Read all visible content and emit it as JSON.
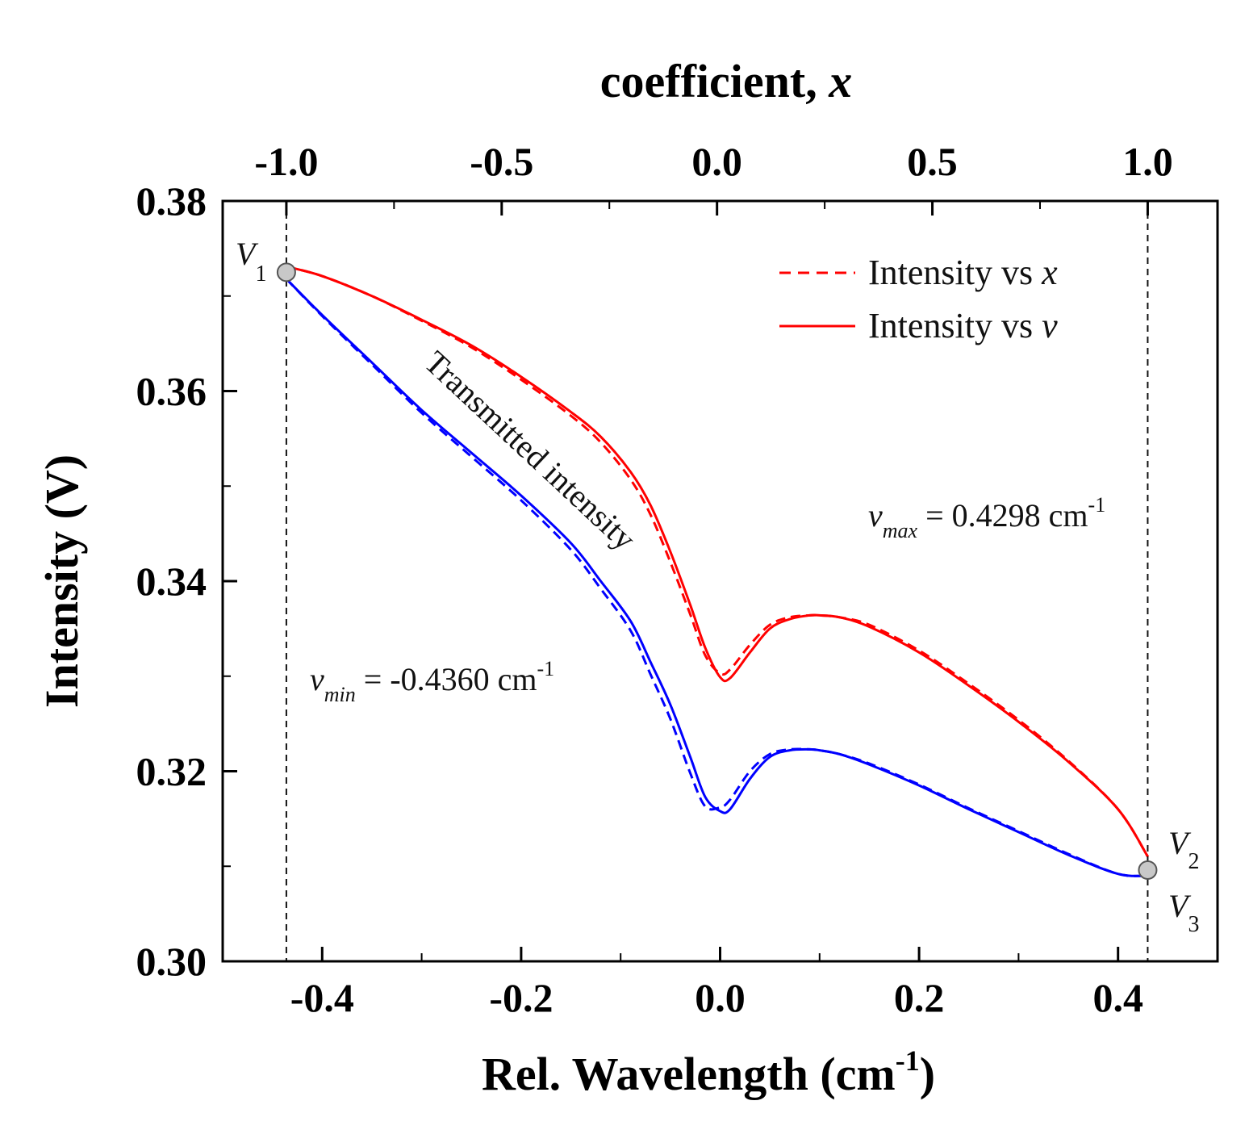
{
  "chart_data": {
    "type": "line",
    "title": "",
    "xlabel": "Rel. Wavelength (cm",
    "xlabel_sup": "-1",
    "xlabel_close": ")",
    "ylabel": "Intensity (V)",
    "top_xlabel": "coefficient, ",
    "top_xlabel_var": "x",
    "xlim": [
      -0.5,
      0.5
    ],
    "ylim": [
      0.3,
      0.38
    ],
    "x_ticks": [
      -0.4,
      -0.2,
      0.0,
      0.2,
      0.4
    ],
    "x_tick_labels": [
      "-0.4",
      "-0.2",
      "0.0",
      "0.2",
      "0.4"
    ],
    "x_minor_ticks": [
      -0.3,
      -0.1,
      0.1,
      0.3
    ],
    "y_ticks": [
      0.3,
      0.32,
      0.34,
      0.36,
      0.38
    ],
    "y_tick_labels": [
      "0.30",
      "0.32",
      "0.34",
      "0.36",
      "0.38"
    ],
    "y_minor_ticks": [
      0.31,
      0.33,
      0.35,
      0.37
    ],
    "top_ticks": [
      -1.0,
      -0.5,
      0.0,
      0.5,
      1.0
    ],
    "top_tick_labels": [
      "-1.0",
      "-0.5",
      "0.0",
      "0.5",
      "1.0"
    ],
    "top_minor_ticks": [
      -0.75,
      -0.25,
      0.25,
      0.75
    ],
    "top_axis_map": {
      "v_min": -0.436,
      "v_max": 0.4298
    },
    "legend": {
      "position": "top-right",
      "entries": [
        {
          "label": "Intensity vs ",
          "var": "x",
          "style": "dashed",
          "color": "#ff0000"
        },
        {
          "label": "Intensity vs ",
          "var": "v",
          "style": "solid",
          "color": "#ff0000"
        }
      ]
    },
    "series": [
      {
        "name": "upper-vs-v",
        "color": "#ff0000",
        "style": "solid",
        "x": [
          -0.436,
          -0.4,
          -0.35,
          -0.3,
          -0.25,
          -0.2,
          -0.15,
          -0.12,
          -0.09,
          -0.07,
          -0.05,
          -0.03,
          -0.015,
          0.0,
          0.01,
          0.03,
          0.05,
          0.07,
          0.09,
          0.1,
          0.12,
          0.15,
          0.2,
          0.25,
          0.3,
          0.35,
          0.4,
          0.43
        ],
        "values": [
          0.3731,
          0.3721,
          0.37,
          0.3675,
          0.3648,
          0.3615,
          0.3578,
          0.3552,
          0.3515,
          0.348,
          0.3431,
          0.3375,
          0.333,
          0.3299,
          0.3298,
          0.3325,
          0.335,
          0.336,
          0.3364,
          0.3364,
          0.3362,
          0.3352,
          0.3325,
          0.329,
          0.3252,
          0.321,
          0.316,
          0.311
        ]
      },
      {
        "name": "upper-vs-x",
        "color": "#ff0000",
        "style": "dashed",
        "x": [
          -0.436,
          -0.4,
          -0.35,
          -0.3,
          -0.25,
          -0.2,
          -0.15,
          -0.12,
          -0.09,
          -0.07,
          -0.05,
          -0.03,
          -0.015,
          0.0,
          0.01,
          0.03,
          0.05,
          0.07,
          0.09,
          0.1,
          0.12,
          0.15,
          0.2,
          0.25,
          0.3,
          0.35,
          0.4,
          0.43
        ],
        "values": [
          0.3731,
          0.3721,
          0.37,
          0.3674,
          0.3646,
          0.3612,
          0.3574,
          0.3546,
          0.3507,
          0.347,
          0.342,
          0.3365,
          0.3322,
          0.3303,
          0.3307,
          0.3333,
          0.3354,
          0.3362,
          0.3364,
          0.3364,
          0.3362,
          0.3354,
          0.3327,
          0.3292,
          0.3254,
          0.3211,
          0.316,
          0.311
        ]
      },
      {
        "name": "lower-vs-v",
        "color": "#0000ff",
        "style": "solid",
        "x": [
          -0.436,
          -0.4,
          -0.35,
          -0.3,
          -0.25,
          -0.2,
          -0.15,
          -0.12,
          -0.09,
          -0.07,
          -0.05,
          -0.03,
          -0.015,
          0.0,
          0.01,
          0.03,
          0.05,
          0.07,
          0.09,
          0.1,
          0.12,
          0.15,
          0.2,
          0.25,
          0.3,
          0.35,
          0.4,
          0.43
        ],
        "values": [
          0.3718,
          0.368,
          0.363,
          0.358,
          0.3535,
          0.349,
          0.344,
          0.34,
          0.3358,
          0.3315,
          0.327,
          0.3215,
          0.3173,
          0.3158,
          0.316,
          0.3192,
          0.3215,
          0.3222,
          0.3223,
          0.3222,
          0.3218,
          0.3207,
          0.3185,
          0.316,
          0.3136,
          0.3112,
          0.3092,
          0.309
        ]
      },
      {
        "name": "lower-vs-x",
        "color": "#0000ff",
        "style": "dashed",
        "x": [
          -0.436,
          -0.4,
          -0.35,
          -0.3,
          -0.25,
          -0.2,
          -0.15,
          -0.12,
          -0.09,
          -0.07,
          -0.05,
          -0.03,
          -0.015,
          0.0,
          0.01,
          0.03,
          0.05,
          0.07,
          0.09,
          0.1,
          0.12,
          0.15,
          0.2,
          0.25,
          0.3,
          0.35,
          0.4,
          0.43
        ],
        "values": [
          0.3718,
          0.3679,
          0.3628,
          0.3577,
          0.3531,
          0.3485,
          0.3433,
          0.3392,
          0.3348,
          0.3302,
          0.3255,
          0.3198,
          0.3163,
          0.3162,
          0.317,
          0.32,
          0.3218,
          0.3223,
          0.3223,
          0.3222,
          0.3218,
          0.3208,
          0.3186,
          0.3161,
          0.3137,
          0.3113,
          0.3092,
          0.309
        ]
      }
    ],
    "markers": [
      {
        "name": "V1",
        "x": -0.436,
        "y": 0.3725
      },
      {
        "name": "V2-V3",
        "x": 0.4298,
        "y": 0.3096
      }
    ],
    "vlines": [
      -0.436,
      0.4298
    ],
    "annotations": {
      "transmitted": "Transmitted intensity",
      "v_min_var": "v",
      "v_min_sub": "min",
      "v_min_text": " = -0.4360 cm",
      "v_min_sup": "-1",
      "v_max_var": "v",
      "v_max_sub": "max",
      "v_max_text": " = 0.4298 cm",
      "v_max_sup": "-1",
      "v1_letter": "V",
      "v1_sub": "1",
      "v2_letter": "V",
      "v2_sub": "2",
      "v3_letter": "V",
      "v3_sub": "3"
    }
  }
}
